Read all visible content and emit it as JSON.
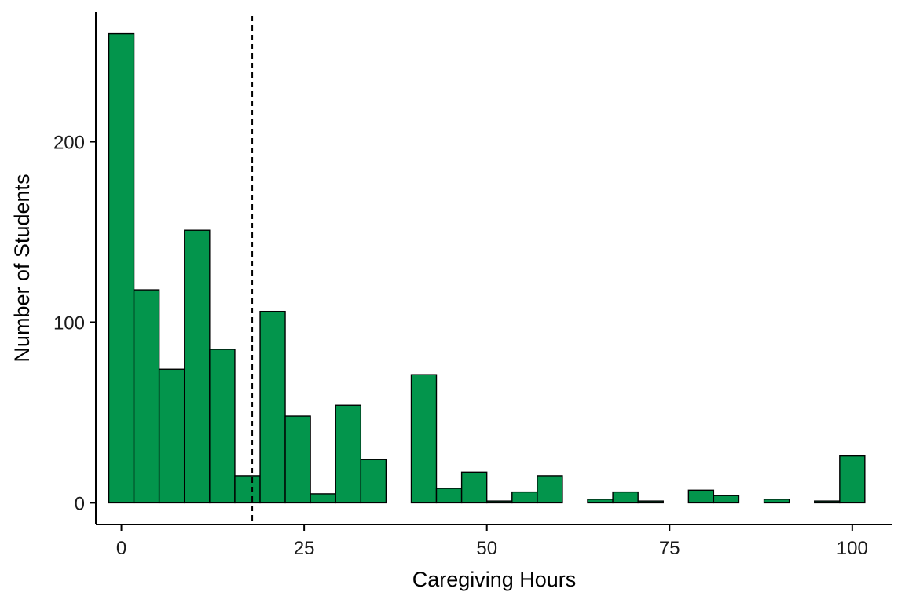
{
  "chart_data": {
    "type": "bar",
    "title": "",
    "xlabel": "Caregiving Hours",
    "ylabel": "Number of Students",
    "xlim": [
      -3.5,
      105.5
    ],
    "ylim": [
      -12,
      272
    ],
    "bin_width": 3.45,
    "first_bin_start": -1.72,
    "bins": [
      {
        "x0": -1.72,
        "x1": 1.72,
        "count": 260
      },
      {
        "x0": 1.72,
        "x1": 5.17,
        "count": 118
      },
      {
        "x0": 5.17,
        "x1": 8.62,
        "count": 74
      },
      {
        "x0": 8.62,
        "x1": 12.07,
        "count": 151
      },
      {
        "x0": 12.07,
        "x1": 15.52,
        "count": 85
      },
      {
        "x0": 15.52,
        "x1": 18.97,
        "count": 15
      },
      {
        "x0": 18.97,
        "x1": 22.41,
        "count": 106
      },
      {
        "x0": 22.41,
        "x1": 25.86,
        "count": 48
      },
      {
        "x0": 25.86,
        "x1": 29.31,
        "count": 5
      },
      {
        "x0": 29.31,
        "x1": 32.76,
        "count": 54
      },
      {
        "x0": 32.76,
        "x1": 36.21,
        "count": 24
      },
      {
        "x0": 36.21,
        "x1": 39.66,
        "count": 0
      },
      {
        "x0": 39.66,
        "x1": 43.1,
        "count": 71
      },
      {
        "x0": 43.1,
        "x1": 46.55,
        "count": 8
      },
      {
        "x0": 46.55,
        "x1": 50.0,
        "count": 17
      },
      {
        "x0": 50.0,
        "x1": 53.45,
        "count": 1
      },
      {
        "x0": 53.45,
        "x1": 56.9,
        "count": 6
      },
      {
        "x0": 56.9,
        "x1": 60.34,
        "count": 15
      },
      {
        "x0": 60.34,
        "x1": 63.79,
        "count": 0
      },
      {
        "x0": 63.79,
        "x1": 67.24,
        "count": 2
      },
      {
        "x0": 67.24,
        "x1": 70.69,
        "count": 6
      },
      {
        "x0": 70.69,
        "x1": 74.14,
        "count": 1
      },
      {
        "x0": 74.14,
        "x1": 77.59,
        "count": 0
      },
      {
        "x0": 77.59,
        "x1": 81.03,
        "count": 7
      },
      {
        "x0": 81.03,
        "x1": 84.48,
        "count": 4
      },
      {
        "x0": 84.48,
        "x1": 87.93,
        "count": 0
      },
      {
        "x0": 87.93,
        "x1": 91.38,
        "count": 2
      },
      {
        "x0": 91.38,
        "x1": 94.83,
        "count": 0
      },
      {
        "x0": 94.83,
        "x1": 98.28,
        "count": 1
      },
      {
        "x0": 98.28,
        "x1": 101.72,
        "count": 26
      }
    ],
    "x_ticks": [
      0,
      25,
      50,
      75,
      100
    ],
    "x_tick_labels": [
      "0",
      "25",
      "50",
      "75",
      "100"
    ],
    "y_ticks": [
      0,
      100,
      200
    ],
    "y_tick_labels": [
      "0",
      "100",
      "200"
    ],
    "reference_line": {
      "x": 17.9,
      "style": "dashed"
    },
    "grid": false,
    "legend": "none",
    "colors": {
      "bar_fill": "#03954c",
      "bar_stroke": "#000000",
      "axis": "#000000",
      "reference_line": "#000000"
    }
  }
}
